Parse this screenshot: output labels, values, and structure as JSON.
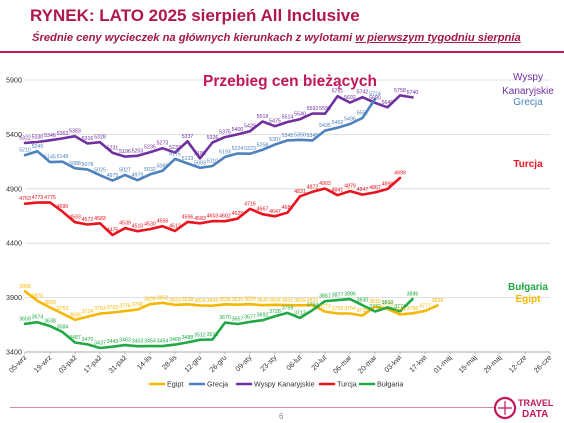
{
  "header": {
    "title": "RYNEK: LATO 2025 sierpień All Inclusive",
    "subtitle_part1": "Średnie ceny wycieczek na głównych kierunkach z wylotami ",
    "subtitle_part2": "w pierwszym tygodniu sierpnia"
  },
  "footer": {
    "page_number": "6",
    "logo_line1": "TRAVEL",
    "logo_line2": "DATA"
  },
  "colors": {
    "accent": "#b0174f",
    "Wyspy Kanaryjskie": "#7030a0",
    "Grecja": "#4f81bd",
    "Turcja": "#e8141f",
    "Bułgaria": "#22a845",
    "Egipt": "#f5b700"
  },
  "chart_data": {
    "type": "line",
    "title": "Przebieg cen bieżących",
    "ylim": [
      3400,
      5900
    ],
    "yticks": [
      3400,
      3900,
      4400,
      4900,
      5400,
      5900
    ],
    "grid": true,
    "legend_position": "bottom",
    "x_tick_labels": [
      "05-wrz",
      "19-wrz",
      "03-paź",
      "17-paź",
      "31-paź",
      "14-lis",
      "28-lis",
      "12-gru",
      "26-gru",
      "09-sty",
      "23-sty",
      "06-lut",
      "20-lut",
      "06-mar",
      "20-mar",
      "03-kwi",
      "17-kwi",
      "01-maj",
      "15-maj",
      "29-maj",
      "12-cze",
      "26-cze"
    ],
    "x_tick_values": [
      0,
      2,
      4,
      6,
      8,
      10,
      12,
      14,
      16,
      18,
      20,
      22,
      24,
      26,
      28,
      30,
      32,
      34,
      36,
      38,
      40,
      42
    ],
    "x_count": 43,
    "side_labels": [
      {
        "text": "Wyspy",
        "series": "Wyspy Kanaryjskie"
      },
      {
        "text": "Kanaryjskie",
        "series": "Wyspy Kanaryjskie"
      },
      {
        "text": "Grecja",
        "series": "Grecja"
      },
      {
        "text": "Turcja",
        "series": "Turcja"
      },
      {
        "text": "Bułgaria",
        "series": "Bułgaria"
      },
      {
        "text": "Egipt",
        "series": "Egipt"
      }
    ],
    "series": [
      {
        "name": "Wyspy Kanaryjskie",
        "values": [
          5322,
          5330,
          5346,
          5363,
          5383,
          5316,
          5328,
          5231,
          5196,
          5203,
          5236,
          5273,
          5233,
          5337,
          5180,
          5326,
          5375,
          5400,
          5429,
          5519,
          5475,
          5514,
          5540,
          5592,
          5590,
          5751,
          5692,
          5742,
          5690,
          5649,
          5758,
          5740
        ]
      },
      {
        "name": "Grecja",
        "values": [
          5210,
          5245,
          5145,
          5149,
          5088,
          5078,
          5025,
          4975,
          5027,
          4979,
          5032,
          5065,
          5175,
          5133,
          5093,
          5110,
          5193,
          5224,
          5223,
          5258,
          5307,
          5345,
          5350,
          5345,
          5435,
          5462,
          5496,
          5552,
          5724
        ]
      },
      {
        "name": "Turcja",
        "values": [
          4763,
          4773,
          4775,
          4690,
          4593,
          4572,
          4583,
          4475,
          4539,
          4510,
          4530,
          4556,
          4512,
          4596,
          4583,
          4603,
          4602,
          4625,
          4716,
          4667,
          4647,
          4681,
          4831,
          4872,
          4903,
          4841,
          4879,
          4847,
          4867,
          4898,
          4999
        ]
      },
      {
        "name": "Egipt",
        "values": [
          3958,
          3870,
          3809,
          3753,
          3695,
          3724,
          3753,
          3763,
          3776,
          3790,
          3839,
          3852,
          3833,
          3838,
          3828,
          3826,
          3838,
          3835,
          3839,
          3830,
          3834,
          3831,
          3829,
          3832,
          3771,
          3755,
          3754,
          3735,
          3816,
          3796,
          3746,
          3756,
          3777,
          3828
        ]
      },
      {
        "name": "Bułgaria",
        "values": [
          3659,
          3674,
          3638,
          3584,
          3487,
          3470,
          3437,
          3449,
          3463,
          3453,
          3454,
          3454,
          3468,
          3488,
          3512,
          3515,
          3670,
          3657,
          3677,
          3692,
          3728,
          3759,
          3713,
          3784,
          3867,
          3877,
          3886,
          3830,
          3772,
          3810,
          3774,
          3886
        ]
      }
    ],
    "data_labels": {
      "Wyspy Kanaryjskie": [
        "5322",
        "5330",
        "5346",
        "5363",
        "5383",
        "5316",
        "5328",
        "5231",
        "5196",
        "5203",
        "5236",
        "5273",
        "5233",
        "5337",
        "5180",
        "5326",
        "5375",
        "5400",
        "5429",
        "5519",
        "5475",
        "5514",
        "5540",
        "5592",
        "5590",
        "5751",
        "5692",
        "5742",
        "5690",
        "5649",
        "5758",
        "5740"
      ],
      "Grecja": [
        "5210",
        "5245",
        "5145",
        "5149",
        "5088",
        "5078",
        "5025",
        "4975",
        "5027",
        "4979",
        "5032",
        "5065",
        "5175",
        "5133",
        "5093",
        "5110",
        "5193",
        "5224",
        "5223",
        "5258",
        "5307",
        "5345",
        "5350",
        "5345",
        "5435",
        "5462",
        "5496",
        "5552",
        "5724"
      ],
      "Turcja": [
        "4763",
        "4773",
        "4775",
        "4690",
        "4593",
        "4572",
        "4583",
        "4475",
        "4539",
        "4510",
        "4530",
        "4556",
        "4512",
        "4596",
        "4583",
        "4603",
        "4602",
        "4625",
        "4716",
        "4667",
        "4647",
        "4681",
        "4831",
        "4872",
        "4903",
        "4841",
        "4879",
        "4847",
        "4867",
        "4898",
        "4999"
      ],
      "Egipt": [
        "3958",
        "3870",
        "3809",
        "3753",
        "3695",
        "3724",
        "3753",
        "3763",
        "3776",
        "3790",
        "3839",
        "3852",
        "3833",
        "3838",
        "3828",
        "3826",
        "3838",
        "3835",
        "3839",
        "3830",
        "3834",
        "3831",
        "3829",
        "3832",
        "3771",
        "3755",
        "3754",
        "3735",
        "3816",
        "3796",
        "3746",
        "3756",
        "3777",
        "3828"
      ],
      "Bułgaria": [
        "3659",
        "3674",
        "3638",
        "3584",
        "3487",
        "3470",
        "3437",
        "3449",
        "3463",
        "3453",
        "3454",
        "3454",
        "3468",
        "3488",
        "3512",
        "3515",
        "3670",
        "3657",
        "3677",
        "3692",
        "3728",
        "3759",
        "3713",
        "3784",
        "3867",
        "3877",
        "3886",
        "3830",
        "3772",
        "3810",
        "3774",
        "3886"
      ]
    }
  }
}
